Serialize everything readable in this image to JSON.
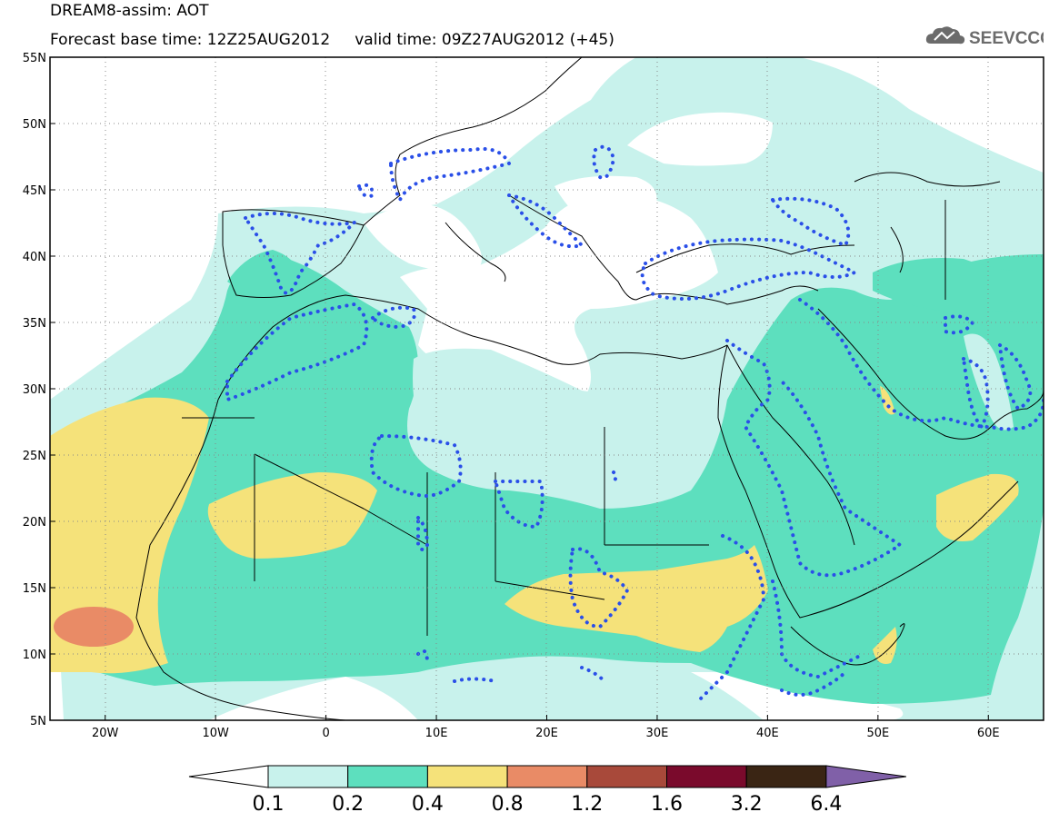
{
  "header": {
    "model_line": "DREAM8-assim: AOT",
    "time_line": "Forecast base time: 12Z25AUG2012     valid time: 09Z27AUG2012 (+45)"
  },
  "logo": {
    "text": "SEEVCCC",
    "icon": "cloud-icon"
  },
  "map": {
    "lon_range": [
      -25,
      65
    ],
    "lat_range": [
      5,
      55
    ],
    "lat_ticks": [
      "5N",
      "10N",
      "15N",
      "20N",
      "25N",
      "30N",
      "35N",
      "40N",
      "45N",
      "50N",
      "55N"
    ],
    "lon_ticks": [
      "20W",
      "10W",
      "0",
      "10E",
      "20E",
      "30E",
      "40E",
      "50E",
      "60E"
    ]
  },
  "colorbar": {
    "levels": [
      "0.1",
      "0.2",
      "0.4",
      "0.8",
      "1.2",
      "1.6",
      "3.2",
      "6.4"
    ],
    "colors": [
      "#c8f2ec",
      "#5ddfbe",
      "#f5e27a",
      "#e98b66",
      "#a8493a",
      "#7a0a2c",
      "#3a2514",
      "#8060a8"
    ]
  },
  "colors": {
    "aot_01_02": "#c8f2ec",
    "aot_02_04": "#5ddfbe",
    "aot_04_08": "#f5e27a",
    "aot_08_12": "#e98b66",
    "contour_dots": "#2a4fe8"
  }
}
